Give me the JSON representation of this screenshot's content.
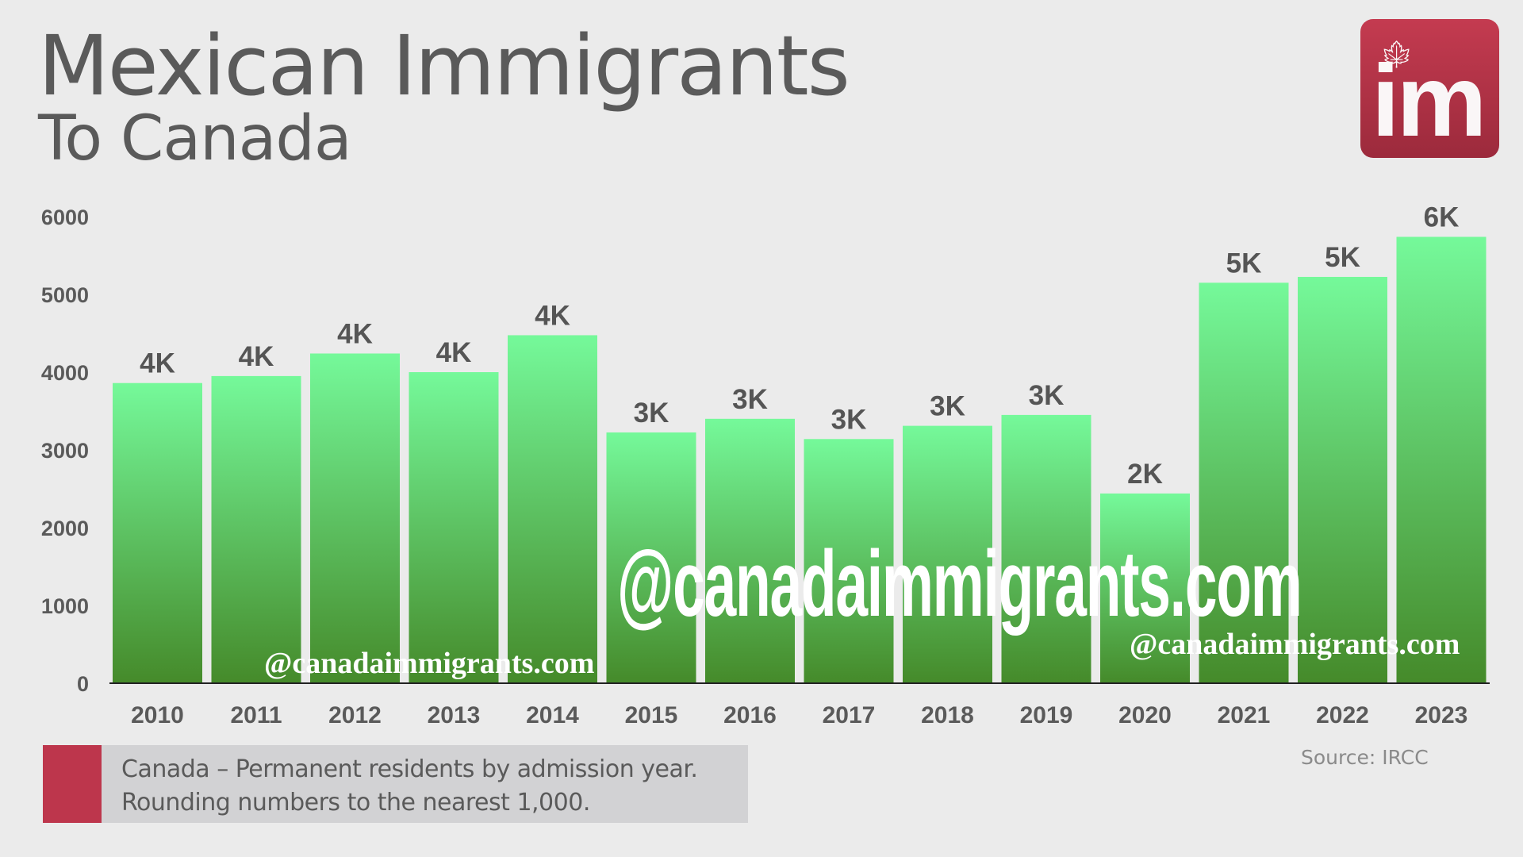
{
  "header": {
    "title": "Mexican Immigrants",
    "subtitle": "To Canada"
  },
  "logo": {
    "text": "im",
    "icon": "maple-leaf-icon"
  },
  "legend": {
    "color": "#bd364c",
    "line1": "Canada – Permanent residents by admission year.",
    "line2": "Rounding numbers to the nearest 1,000."
  },
  "source": "Source: IRCC",
  "watermark": "@canadaimmigrants.com",
  "chart_data": {
    "type": "bar",
    "title": "Mexican Immigrants To Canada",
    "xlabel": "",
    "ylabel": "",
    "categories": [
      "2010",
      "2011",
      "2012",
      "2013",
      "2014",
      "2015",
      "2016",
      "2017",
      "2018",
      "2019",
      "2020",
      "2021",
      "2022",
      "2023"
    ],
    "values": [
      3860,
      3950,
      4240,
      4000,
      4475,
      3225,
      3400,
      3140,
      3310,
      3450,
      2440,
      5150,
      5225,
      5740
    ],
    "data_labels": [
      "4K",
      "4K",
      "4K",
      "4K",
      "4K",
      "3K",
      "3K",
      "3K",
      "3K",
      "3K",
      "2K",
      "5K",
      "5K",
      "6K"
    ],
    "ylim": [
      0,
      6000
    ],
    "yticks": [
      "0",
      "1000",
      "2000",
      "3000",
      "4000",
      "5000",
      "6000"
    ],
    "grid": false,
    "colors": {
      "bar_top": "#75f99a",
      "bar_bottom": "#458a2a"
    }
  }
}
